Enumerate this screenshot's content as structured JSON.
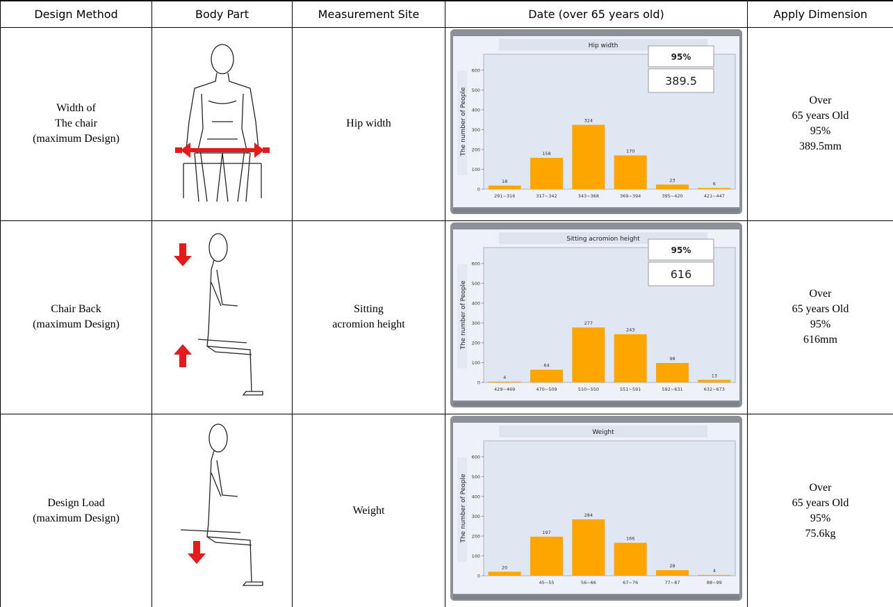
{
  "table": {
    "header": [
      "Design Method",
      "Body Part",
      "Measurement Site",
      "Date (over 65 years old)",
      "Apply Dimension"
    ],
    "rows": [
      {
        "design_method": [
          "Width of",
          "The chair",
          "(maximum Design)"
        ],
        "measurement_site": [
          "Hip width"
        ],
        "chart": {
          "type": "bar",
          "title": "Hip width",
          "y_label": "The number of People",
          "categories": [
            "291~316",
            "317~342",
            "343~368",
            "369~394",
            "395~420",
            "421~447"
          ],
          "values": [
            18,
            158,
            324,
            170,
            23,
            6
          ],
          "color": "#ffa500",
          "ylim": [
            0,
            680
          ],
          "yticks": [
            0,
            100,
            200,
            300,
            400,
            500,
            600
          ],
          "percentile_box": {
            "label": "95%",
            "value": 389.5
          }
        },
        "apply_dimension": [
          "Over",
          "65 years Old",
          "95%",
          "389.5mm"
        ]
      },
      {
        "design_method": [
          "Chair Back",
          "(maximum Design)"
        ],
        "measurement_site": [
          "Sitting",
          "acromion height"
        ],
        "chart": {
          "type": "bar",
          "title": "Sitting acromion height",
          "y_label": "The number of People",
          "categories": [
            "429~469",
            "470~509",
            "510~550",
            "551~591",
            "592~631",
            "632~673"
          ],
          "values": [
            4,
            64,
            277,
            243,
            98,
            13
          ],
          "color": "#ffa500",
          "ylim": [
            0,
            680
          ],
          "yticks": [
            0,
            100,
            200,
            300,
            400,
            500,
            600
          ],
          "percentile_box": {
            "label": "95%",
            "value": 616
          }
        },
        "apply_dimension": [
          "Over",
          "65 years Old",
          "95%",
          "616mm"
        ]
      },
      {
        "design_method": [
          "Design Load",
          "(maximum Design)"
        ],
        "measurement_site": [
          "Weight"
        ],
        "chart": {
          "type": "bar",
          "title": "Weight",
          "y_label": "The number of People",
          "categories": [
            null,
            "45~55",
            "56~66",
            "67~76",
            "77~87",
            "88~99"
          ],
          "values": [
            20,
            197,
            284,
            166,
            28,
            4
          ],
          "color": "#ffa500",
          "ylim": [
            0,
            680
          ],
          "yticks": [
            0,
            100,
            200,
            300,
            400,
            500,
            600
          ]
        },
        "apply_dimension": [
          "Over",
          "65 years Old",
          "95%",
          "75.6kg"
        ]
      }
    ]
  }
}
